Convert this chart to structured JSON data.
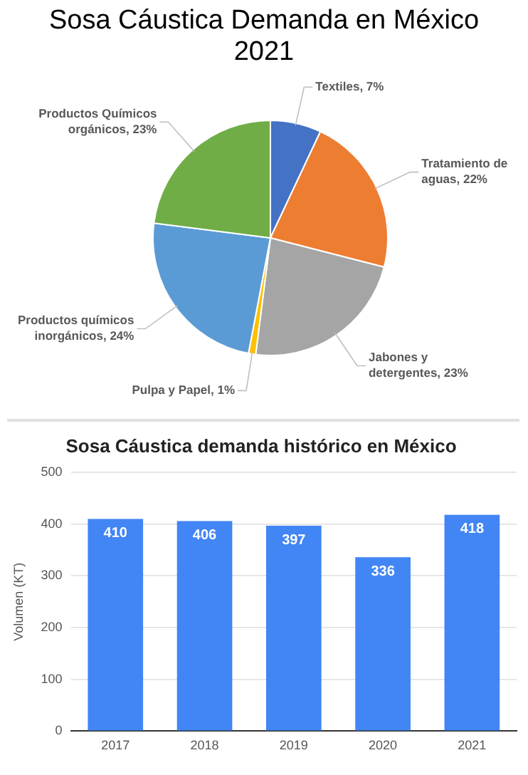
{
  "chart_data": [
    {
      "type": "pie",
      "title": "Sosa Cáustica Demanda en México 2021",
      "categories": [
        "Textiles",
        "Tratamiento de aguas",
        "Jabones y detergentes",
        "Pulpa y Papel",
        "Productos químicos inorgánicos",
        "Productos Químicos orgánicos"
      ],
      "values": [
        7,
        22,
        23,
        1,
        24,
        23
      ],
      "value_labels": [
        ", 7%",
        ", 22%",
        ", 23%",
        ", 1%",
        ", 24%",
        ", 23%"
      ],
      "colors": [
        "#4472c4",
        "#ed7d31",
        "#a5a5a5",
        "#ffc000",
        "#5b9bd5",
        "#70ad47"
      ],
      "legend": false
    },
    {
      "type": "bar",
      "title": "Sosa Cáustica demanda histórico en México",
      "ylabel": "Volumen (KT)",
      "categories": [
        "2017",
        "2018",
        "2019",
        "2020",
        "2021"
      ],
      "values": [
        410,
        406,
        397,
        336,
        418
      ],
      "color": "#4285f4",
      "ylim": [
        0,
        500
      ],
      "yticks": [
        0,
        100,
        200,
        300,
        400,
        500
      ],
      "grid": "y",
      "data_labels": true,
      "legend": false
    }
  ]
}
